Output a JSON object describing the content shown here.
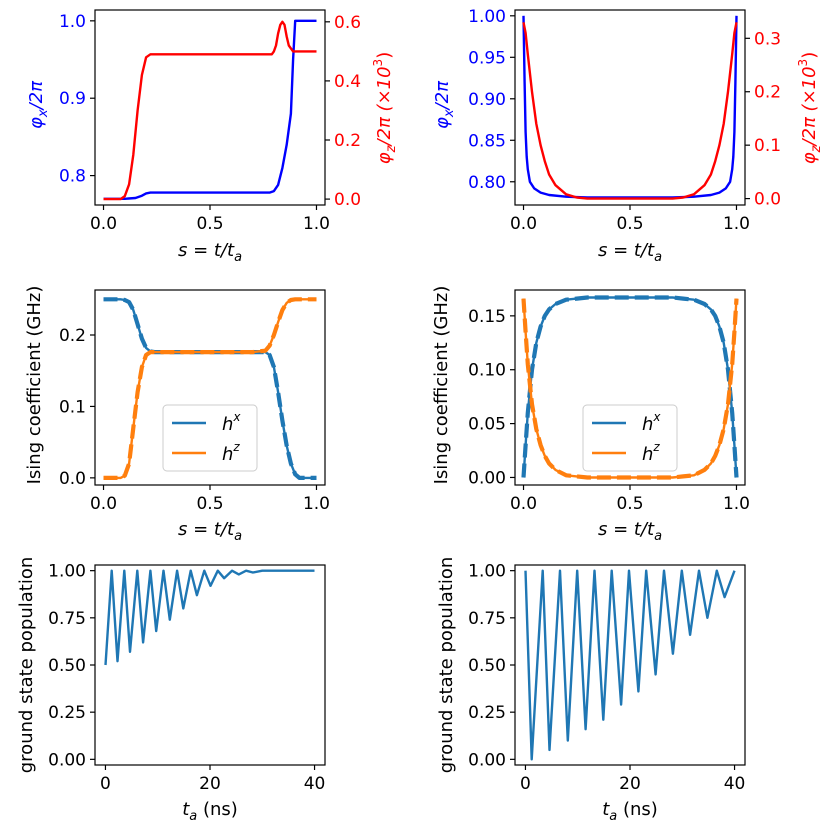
{
  "colors": {
    "phix": "#0000ff",
    "phiz": "#ff0000",
    "hx": "#1f77b4",
    "hz": "#ff7f0e",
    "axis": "#000000"
  },
  "chart_data": [
    {
      "id": "flux-sweep-a",
      "type": "line",
      "xlabel": "s = t/t_a",
      "ylabel": "φ_x/2π",
      "ylabel_right": "φ_z/2π (×10^3)",
      "xlim": [
        -0.04,
        1.04
      ],
      "ylim": [
        0.762,
        1.014
      ],
      "ylim_right": [
        -0.02,
        0.64
      ],
      "xticks": [
        "0.0",
        "0.5",
        "1.0"
      ],
      "yticks": [
        "0.8",
        "0.9",
        "1.0"
      ],
      "yticks_right": [
        "0.0",
        "0.2",
        "0.4",
        "0.6"
      ],
      "series": [
        {
          "axis": "left",
          "color": "blue",
          "x": [
            0,
            0.1,
            0.15,
            0.18,
            0.2,
            0.22,
            0.25,
            0.3,
            0.4,
            0.5,
            0.6,
            0.7,
            0.78,
            0.8,
            0.82,
            0.84,
            0.86,
            0.88,
            0.89,
            0.9,
            0.91,
            0.95,
            1.0
          ],
          "y": [
            0.77,
            0.77,
            0.771,
            0.774,
            0.777,
            0.778,
            0.778,
            0.778,
            0.778,
            0.778,
            0.778,
            0.778,
            0.778,
            0.78,
            0.788,
            0.81,
            0.84,
            0.88,
            0.95,
            1.0,
            1.0,
            1.0,
            1.0
          ]
        },
        {
          "axis": "right",
          "color": "red",
          "x": [
            0,
            0.08,
            0.1,
            0.12,
            0.14,
            0.16,
            0.18,
            0.2,
            0.22,
            0.25,
            0.3,
            0.5,
            0.7,
            0.79,
            0.8,
            0.81,
            0.82,
            0.83,
            0.84,
            0.85,
            0.86,
            0.87,
            0.88,
            0.89,
            0.9,
            1.0
          ],
          "y": [
            0.0,
            0.0,
            0.01,
            0.05,
            0.15,
            0.3,
            0.42,
            0.48,
            0.49,
            0.49,
            0.49,
            0.49,
            0.49,
            0.49,
            0.5,
            0.52,
            0.56,
            0.59,
            0.6,
            0.59,
            0.55,
            0.52,
            0.51,
            0.5,
            0.5,
            0.5
          ]
        }
      ]
    },
    {
      "id": "flux-sweep-b",
      "type": "line",
      "xlabel": "s = t/t_a",
      "ylabel": "φ_x/2π",
      "ylabel_right": "φ_z/2π (×10^3)",
      "xlim": [
        -0.04,
        1.04
      ],
      "ylim": [
        0.772,
        1.007
      ],
      "ylim_right": [
        -0.012,
        0.353
      ],
      "xticks": [
        "0.0",
        "0.5",
        "1.0"
      ],
      "yticks": [
        "0.80",
        "0.85",
        "0.90",
        "0.95",
        "1.00"
      ],
      "yticks_right": [
        "0.0",
        "0.1",
        "0.2",
        "0.3"
      ],
      "series": [
        {
          "axis": "left",
          "color": "blue",
          "x": [
            0,
            0.005,
            0.01,
            0.015,
            0.02,
            0.03,
            0.05,
            0.08,
            0.12,
            0.2,
            0.3,
            0.5,
            0.7,
            0.8,
            0.88,
            0.92,
            0.95,
            0.97,
            0.98,
            0.985,
            0.99,
            0.995,
            1.0
          ],
          "y": [
            1.0,
            0.92,
            0.86,
            0.83,
            0.815,
            0.8,
            0.792,
            0.787,
            0.784,
            0.782,
            0.781,
            0.781,
            0.781,
            0.782,
            0.784,
            0.787,
            0.792,
            0.8,
            0.815,
            0.83,
            0.86,
            0.92,
            1.0
          ]
        },
        {
          "axis": "right",
          "color": "red",
          "x": [
            0,
            0.01,
            0.02,
            0.04,
            0.06,
            0.08,
            0.1,
            0.12,
            0.15,
            0.2,
            0.25,
            0.3,
            0.5,
            0.7,
            0.75,
            0.8,
            0.85,
            0.88,
            0.9,
            0.92,
            0.94,
            0.96,
            0.98,
            0.99,
            1.0
          ],
          "y": [
            0.33,
            0.31,
            0.27,
            0.2,
            0.14,
            0.1,
            0.07,
            0.045,
            0.025,
            0.008,
            0.002,
            0.0,
            0.0,
            0.0,
            0.002,
            0.008,
            0.025,
            0.045,
            0.07,
            0.1,
            0.14,
            0.2,
            0.27,
            0.31,
            0.33
          ]
        }
      ]
    },
    {
      "id": "ising-a",
      "type": "line",
      "xlabel": "s = t/t_a",
      "ylabel": "Ising coefficient (GHz)",
      "xlim": [
        -0.04,
        1.04
      ],
      "ylim": [
        -0.01,
        0.263
      ],
      "xticks": [
        "0.0",
        "0.5",
        "1.0"
      ],
      "yticks": [
        "0.0",
        "0.1",
        "0.2"
      ],
      "legend": {
        "placement": "center-right",
        "entries": [
          "h^x",
          "h^z"
        ]
      },
      "series": [
        {
          "name": "h^x",
          "color": "hx",
          "dashed_overlay": true,
          "x": [
            0,
            0.08,
            0.1,
            0.12,
            0.14,
            0.16,
            0.18,
            0.2,
            0.22,
            0.24,
            0.3,
            0.5,
            0.7,
            0.76,
            0.78,
            0.8,
            0.82,
            0.84,
            0.86,
            0.88,
            0.9,
            0.92,
            1.0
          ],
          "y": [
            0.25,
            0.25,
            0.249,
            0.246,
            0.235,
            0.215,
            0.195,
            0.182,
            0.177,
            0.176,
            0.176,
            0.176,
            0.176,
            0.176,
            0.172,
            0.155,
            0.12,
            0.08,
            0.045,
            0.02,
            0.005,
            0.0,
            0.0
          ]
        },
        {
          "name": "h^z",
          "color": "hz",
          "dashed_overlay": true,
          "x": [
            0,
            0.08,
            0.1,
            0.12,
            0.14,
            0.16,
            0.18,
            0.2,
            0.22,
            0.24,
            0.3,
            0.5,
            0.7,
            0.76,
            0.78,
            0.8,
            0.82,
            0.84,
            0.86,
            0.88,
            0.9,
            0.92,
            1.0
          ],
          "y": [
            0.0,
            0.0,
            0.003,
            0.02,
            0.07,
            0.12,
            0.155,
            0.172,
            0.176,
            0.176,
            0.176,
            0.176,
            0.176,
            0.178,
            0.185,
            0.2,
            0.218,
            0.235,
            0.245,
            0.249,
            0.25,
            0.25,
            0.25
          ]
        }
      ]
    },
    {
      "id": "ising-b",
      "type": "line",
      "xlabel": "s = t/t_a",
      "ylabel": "Ising coefficient (GHz)",
      "xlim": [
        -0.04,
        1.04
      ],
      "ylim": [
        -0.007,
        0.174
      ],
      "xticks": [
        "0.0",
        "0.5",
        "1.0"
      ],
      "yticks": [
        "0.00",
        "0.05",
        "0.10",
        "0.15"
      ],
      "legend": {
        "placement": "center-right",
        "entries": [
          "h^x",
          "h^z"
        ]
      },
      "series": [
        {
          "name": "h^x",
          "color": "hx",
          "dashed_overlay": true,
          "x": [
            0,
            0.01,
            0.02,
            0.04,
            0.06,
            0.08,
            0.1,
            0.12,
            0.15,
            0.2,
            0.25,
            0.3,
            0.5,
            0.7,
            0.75,
            0.8,
            0.85,
            0.88,
            0.9,
            0.92,
            0.94,
            0.96,
            0.98,
            0.99,
            1.0
          ],
          "y": [
            0.0,
            0.03,
            0.06,
            0.1,
            0.125,
            0.14,
            0.15,
            0.156,
            0.161,
            0.165,
            0.166,
            0.167,
            0.167,
            0.167,
            0.166,
            0.165,
            0.161,
            0.156,
            0.15,
            0.14,
            0.125,
            0.1,
            0.06,
            0.03,
            0.0
          ]
        },
        {
          "name": "h^z",
          "color": "hz",
          "dashed_overlay": true,
          "x": [
            0,
            0.01,
            0.02,
            0.04,
            0.06,
            0.08,
            0.1,
            0.12,
            0.15,
            0.2,
            0.25,
            0.3,
            0.5,
            0.7,
            0.75,
            0.8,
            0.85,
            0.88,
            0.9,
            0.92,
            0.94,
            0.96,
            0.98,
            0.99,
            1.0
          ],
          "y": [
            0.166,
            0.135,
            0.105,
            0.068,
            0.045,
            0.03,
            0.02,
            0.013,
            0.007,
            0.002,
            0.001,
            0.0,
            0.0,
            0.0,
            0.001,
            0.002,
            0.007,
            0.013,
            0.02,
            0.03,
            0.045,
            0.068,
            0.105,
            0.135,
            0.166
          ]
        }
      ]
    },
    {
      "id": "population-a",
      "type": "line",
      "xlabel": "t_a (ns)",
      "ylabel": "ground state population",
      "xlim": [
        -2,
        42
      ],
      "ylim": [
        -0.03,
        1.03
      ],
      "xticks": [
        "0",
        "20",
        "40"
      ],
      "yticks": [
        "0.00",
        "0.25",
        "0.50",
        "0.75",
        "1.00"
      ],
      "series": [
        {
          "color": "hx",
          "x": [
            0,
            1.2,
            2.3,
            3.6,
            4.7,
            6.1,
            7.2,
            8.6,
            9.7,
            11.1,
            12.3,
            13.7,
            14.9,
            16.3,
            17.5,
            18.9,
            20.1,
            21.5,
            22.7,
            24.2,
            25.5,
            26.9,
            28.2,
            30.0,
            40.0
          ],
          "y": [
            0.5,
            1.0,
            0.52,
            1.0,
            0.57,
            1.0,
            0.62,
            1.0,
            0.68,
            1.0,
            0.74,
            1.0,
            0.8,
            1.0,
            0.87,
            1.0,
            0.92,
            1.0,
            0.96,
            1.0,
            0.98,
            1.0,
            0.99,
            1.0,
            1.0
          ]
        }
      ]
    },
    {
      "id": "population-b",
      "type": "line",
      "xlabel": "t_a (ns)",
      "ylabel": "ground state population",
      "xlim": [
        -2,
        42
      ],
      "ylim": [
        -0.03,
        1.03
      ],
      "xticks": [
        "0",
        "20",
        "40"
      ],
      "yticks": [
        "0.00",
        "0.25",
        "0.50",
        "0.75",
        "1.00"
      ],
      "series": [
        {
          "color": "hx",
          "x": [
            0,
            1.2,
            3.3,
            4.6,
            6.6,
            8.1,
            9.9,
            11.5,
            13.2,
            14.9,
            16.5,
            18.3,
            19.8,
            21.6,
            23.1,
            24.9,
            26.5,
            28.2,
            29.9,
            31.5,
            33.2,
            34.8,
            36.6,
            38.1,
            40.0
          ],
          "y": [
            1.0,
            0.0,
            1.0,
            0.05,
            1.0,
            0.1,
            1.0,
            0.16,
            1.0,
            0.21,
            1.0,
            0.29,
            1.0,
            0.36,
            1.0,
            0.45,
            1.0,
            0.56,
            1.0,
            0.66,
            1.0,
            0.75,
            1.0,
            0.86,
            1.0
          ]
        }
      ]
    }
  ],
  "labels": {
    "s_axis": "s = t/t",
    "s_sub": "a",
    "phix_main": "φ",
    "phix_sub": "x",
    "phix_tail": "/2π",
    "phiz_main": "φ",
    "phiz_sub": "z",
    "phiz_tail": "/2π (×10",
    "phiz_sup": "3",
    "phiz_close": ")",
    "ising": "Ising coefficient (GHz)",
    "pop": "ground state population",
    "ta_main": "t",
    "ta_sub": "a",
    "ta_tail": " (ns)",
    "leg_h": "h",
    "leg_x": "x",
    "leg_z": "z"
  }
}
